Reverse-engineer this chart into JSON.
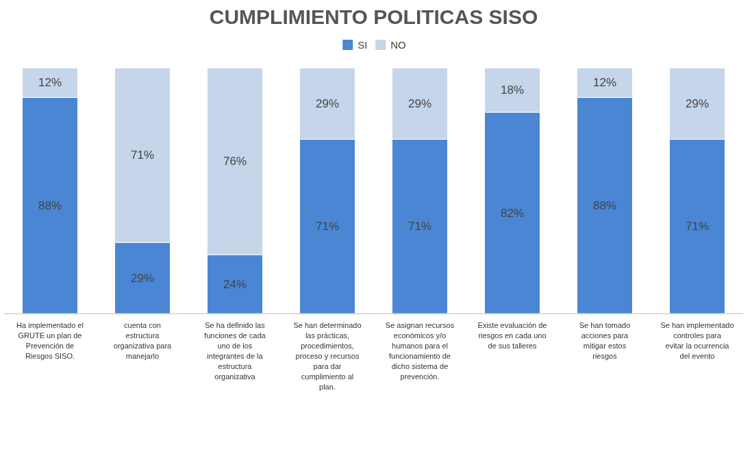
{
  "chart_data": {
    "type": "bar",
    "title": "CUMPLIMIENTO POLITICAS SISO",
    "stacked": true,
    "legend": "top",
    "grid": false,
    "categories": [
      "Ha implementado el GRUTE un plan de Prevención de Riesgos SISO.",
      "cuenta con estructura organizativa para manejarlo",
      "Se ha definido las funciones de cada uno de los integrantes de la estructura organizativa",
      "Se han determinado las prácticas, procedimientos, proceso y recursos para dar cumplimiento al plan.",
      "Se asignan recursos económicos y/o humanos para el funcionamiento de dicho sistema de prevención.",
      "Existe evaluación de riesgos en cada uno de sus talleres",
      "Se han tomado acciones para mitigar estos riesgos",
      "Se han implementado controles para evitar la ocurrencia del evento"
    ],
    "series": [
      {
        "name": "SI",
        "color": "#4a86d4",
        "values": [
          88,
          29,
          24,
          71,
          71,
          82,
          88,
          71
        ],
        "value_labels": [
          "88%",
          "29%",
          "24%",
          "71%",
          "71%",
          "82%",
          "88%",
          "71%"
        ]
      },
      {
        "name": "NO",
        "color": "#c5d5ea",
        "values": [
          12,
          71,
          76,
          29,
          29,
          18,
          12,
          29
        ],
        "value_labels": [
          "12%",
          "71%",
          "76%",
          "29%",
          "29%",
          "18%",
          "12%",
          "29%"
        ]
      }
    ]
  }
}
